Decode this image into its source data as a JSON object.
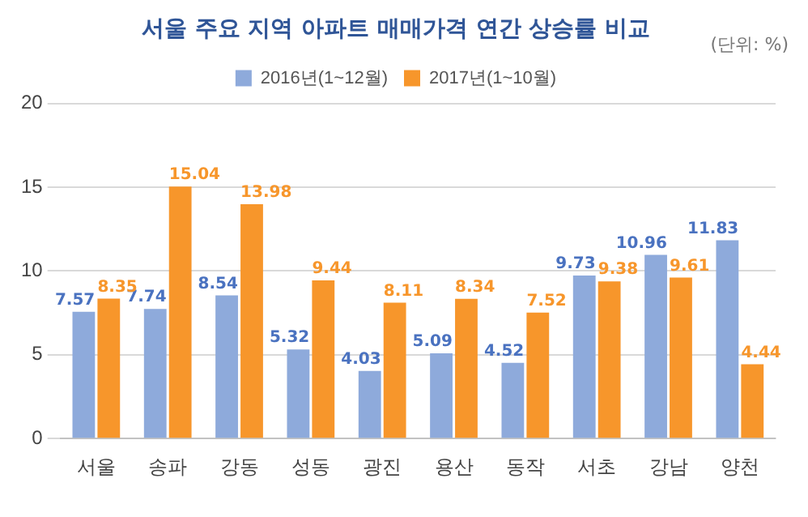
{
  "chart_data": {
    "type": "bar",
    "title": "서울 주요 지역 아파트 매매가격 연간 상승률 비교",
    "annotations": [
      "(단위: %)"
    ],
    "categories": [
      "서울",
      "송파",
      "강동",
      "성동",
      "광진",
      "용산",
      "동작",
      "서초",
      "강남",
      "양천"
    ],
    "series": [
      {
        "name": "2016년(1~12월)",
        "color": "#8eaadb",
        "values": [
          7.57,
          7.74,
          8.54,
          5.32,
          4.03,
          5.09,
          4.52,
          9.73,
          10.96,
          11.83
        ]
      },
      {
        "name": "2017년(1~10월)",
        "color": "#f7962b",
        "values": [
          8.35,
          15.04,
          13.98,
          9.44,
          8.11,
          8.34,
          7.52,
          9.38,
          9.61,
          4.44
        ]
      }
    ],
    "ylim": [
      0,
      20
    ],
    "yticks": [
      0,
      5,
      10,
      15,
      20
    ],
    "grid": "y",
    "legend": "top",
    "data_labels": true
  }
}
